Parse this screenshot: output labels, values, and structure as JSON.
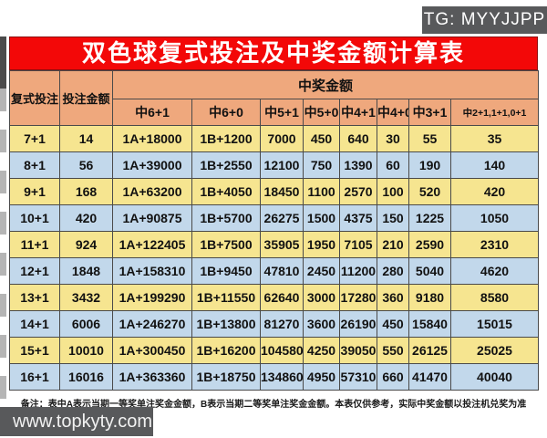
{
  "overlays": {
    "tg_badge": "TG: MYYJJPP",
    "site_badge": "www.topkyty.com"
  },
  "table": {
    "title": "双色球复式投注及中奖金额计算表",
    "header": {
      "bet_type": "复式投注",
      "bet_amount": "投注金额",
      "prize_group": "中奖金额",
      "prize_columns": [
        "中6+1",
        "中6+0",
        "中5+1",
        "中5+0",
        "中4+1",
        "中4+0",
        "中3+1",
        "中2+1,1+1,0+1"
      ]
    },
    "rows": [
      [
        "7+1",
        "14",
        "1A+18000",
        "1B+1200",
        "7000",
        "450",
        "640",
        "30",
        "55",
        "35"
      ],
      [
        "8+1",
        "56",
        "1A+39000",
        "1B+2550",
        "12100",
        "750",
        "1390",
        "60",
        "190",
        "140"
      ],
      [
        "9+1",
        "168",
        "1A+63200",
        "1B+4050",
        "18450",
        "1100",
        "2570",
        "100",
        "520",
        "420"
      ],
      [
        "10+1",
        "420",
        "1A+90875",
        "1B+5700",
        "26275",
        "1500",
        "4375",
        "150",
        "1225",
        "1050"
      ],
      [
        "11+1",
        "924",
        "1A+122405",
        "1B+7500",
        "35905",
        "1950",
        "7105",
        "210",
        "2590",
        "2310"
      ],
      [
        "12+1",
        "1848",
        "1A+158310",
        "1B+9450",
        "47810",
        "2450",
        "11200",
        "280",
        "5040",
        "4620"
      ],
      [
        "13+1",
        "3432",
        "1A+199290",
        "1B+11550",
        "62640",
        "3000",
        "17280",
        "360",
        "9180",
        "8580"
      ],
      [
        "14+1",
        "6006",
        "1A+246270",
        "1B+13800",
        "81270",
        "3600",
        "26190",
        "450",
        "15840",
        "15015"
      ],
      [
        "15+1",
        "10010",
        "1A+300450",
        "1B+16200",
        "104580",
        "4250",
        "39050",
        "550",
        "26125",
        "25025"
      ],
      [
        "16+1",
        "16016",
        "1A+363360",
        "1B+18750",
        "134860",
        "4950",
        "57310",
        "660",
        "41470",
        "40040"
      ]
    ],
    "footnote": "备注：表中A表示当期一等奖单注奖金金额，B表示当期二等奖单注奖金金额。本表仅供参考，实际中奖金额以投注机兑奖为准"
  },
  "colors": {
    "title_red": "#f30808",
    "header_peach": "#efa87d",
    "row_yellow": "#f6e590",
    "row_blue": "#c2d8eb",
    "badge_gray": "#58595b",
    "grid_line": "#4a4a4a"
  }
}
